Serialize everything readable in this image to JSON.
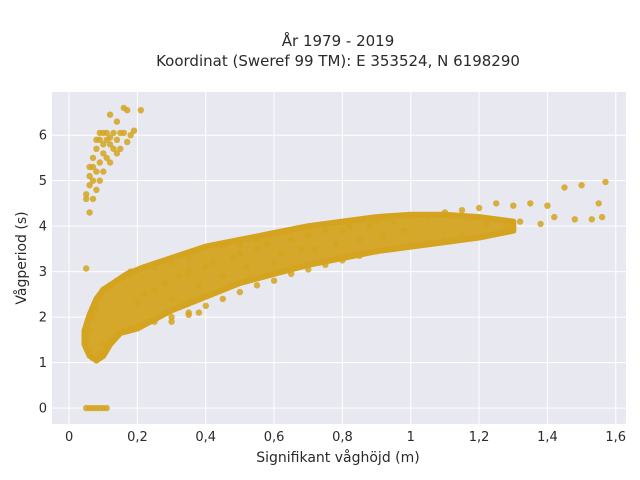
{
  "chart_data": {
    "type": "scatter",
    "title": [
      "År 1979 - 2019",
      "Koordinat (Sweref 99 TM): E 353524, N 6198290"
    ],
    "xlabel": "Signifikant våghöjd (m)",
    "ylabel": "Vågperiod (s)",
    "xlim": [
      -0.05,
      1.63
    ],
    "ylim": [
      -0.35,
      6.95
    ],
    "xticks": [
      0,
      0.2,
      0.4,
      0.6,
      0.8,
      1,
      1.2,
      1.4,
      1.6
    ],
    "xtick_labels": [
      "0",
      "0,2",
      "0,4",
      "0,6",
      "0,8",
      "1",
      "1,2",
      "1,4",
      "1,6"
    ],
    "yticks": [
      0,
      1,
      2,
      3,
      4,
      5,
      6
    ],
    "ytick_labels": [
      "0",
      "1",
      "2",
      "3",
      "4",
      "5",
      "6"
    ],
    "grid": true,
    "colors": {
      "marker": "#d4a420",
      "plot_bg": "#e8e8f0",
      "grid": "#ffffff"
    },
    "series": [
      {
        "points": [
          [
            0.05,
            0
          ],
          [
            0.06,
            0
          ],
          [
            0.07,
            0
          ],
          [
            0.08,
            0
          ],
          [
            0.09,
            0
          ],
          [
            0.1,
            0
          ],
          [
            0.11,
            0
          ],
          [
            0.05,
            3.07
          ],
          [
            0.05,
            4.6
          ],
          [
            0.05,
            4.7
          ],
          [
            0.06,
            4.9
          ],
          [
            0.06,
            5.1
          ],
          [
            0.07,
            5.3
          ],
          [
            0.07,
            5.5
          ],
          [
            0.08,
            5.7
          ],
          [
            0.08,
            5.9
          ],
          [
            0.09,
            5.9
          ],
          [
            0.09,
            6.05
          ],
          [
            0.1,
            6.05
          ],
          [
            0.1,
            5.8
          ],
          [
            0.11,
            5.9
          ],
          [
            0.11,
            6.05
          ],
          [
            0.12,
            5.95
          ],
          [
            0.12,
            5.8
          ],
          [
            0.13,
            6.05
          ],
          [
            0.14,
            5.9
          ],
          [
            0.15,
            6.05
          ],
          [
            0.16,
            6.05
          ],
          [
            0.17,
            5.85
          ],
          [
            0.18,
            6.0
          ],
          [
            0.19,
            6.1
          ],
          [
            0.07,
            5.0
          ],
          [
            0.08,
            4.8
          ],
          [
            0.08,
            5.2
          ],
          [
            0.09,
            5.4
          ],
          [
            0.1,
            5.6
          ],
          [
            0.1,
            5.2
          ],
          [
            0.11,
            5.5
          ],
          [
            0.12,
            5.4
          ],
          [
            0.13,
            5.7
          ],
          [
            0.14,
            5.6
          ],
          [
            0.15,
            5.7
          ],
          [
            0.06,
            4.3
          ],
          [
            0.06,
            5.3
          ],
          [
            0.07,
            4.6
          ],
          [
            0.09,
            5.0
          ],
          [
            0.12,
            6.45
          ],
          [
            0.14,
            6.3
          ],
          [
            0.16,
            6.6
          ],
          [
            0.17,
            6.55
          ],
          [
            0.21,
            6.55
          ],
          [
            0.2,
            2.3
          ],
          [
            0.22,
            2.5
          ],
          [
            0.25,
            2.6
          ],
          [
            0.28,
            2.75
          ],
          [
            0.3,
            2.4
          ],
          [
            0.32,
            2.9
          ],
          [
            0.35,
            3.0
          ],
          [
            0.38,
            2.7
          ],
          [
            0.4,
            3.1
          ],
          [
            0.42,
            3.2
          ],
          [
            0.45,
            2.9
          ],
          [
            0.48,
            3.3
          ],
          [
            0.5,
            3.4
          ],
          [
            0.52,
            3.1
          ],
          [
            0.55,
            3.5
          ],
          [
            0.58,
            3.6
          ],
          [
            0.6,
            3.2
          ],
          [
            0.62,
            3.4
          ],
          [
            0.65,
            3.7
          ],
          [
            0.68,
            3.5
          ],
          [
            0.7,
            3.8
          ],
          [
            0.72,
            3.5
          ],
          [
            0.75,
            3.9
          ],
          [
            0.78,
            3.6
          ],
          [
            0.8,
            3.9
          ],
          [
            0.82,
            4.0
          ],
          [
            0.85,
            3.7
          ],
          [
            0.88,
            4.0
          ],
          [
            0.9,
            4.1
          ],
          [
            0.92,
            3.8
          ],
          [
            0.95,
            4.1
          ],
          [
            0.98,
            3.9
          ],
          [
            1.0,
            4.2
          ],
          [
            1.05,
            4.2
          ],
          [
            1.1,
            4.3
          ],
          [
            1.15,
            4.35
          ],
          [
            1.2,
            4.4
          ],
          [
            1.25,
            4.5
          ],
          [
            1.3,
            4.45
          ],
          [
            1.35,
            4.5
          ],
          [
            1.4,
            4.45
          ],
          [
            1.45,
            4.85
          ],
          [
            1.5,
            4.9
          ],
          [
            1.55,
            4.5
          ],
          [
            1.57,
            4.97
          ],
          [
            1.56,
            4.2
          ],
          [
            1.53,
            4.15
          ],
          [
            1.48,
            4.15
          ],
          [
            1.42,
            4.2
          ],
          [
            1.38,
            4.05
          ],
          [
            1.32,
            4.1
          ],
          [
            1.28,
            4.0
          ],
          [
            1.22,
            4.05
          ],
          [
            0.2,
            1.8
          ],
          [
            0.25,
            1.9
          ],
          [
            0.3,
            2.0
          ],
          [
            0.35,
            2.05
          ],
          [
            0.4,
            2.25
          ],
          [
            0.45,
            2.4
          ],
          [
            0.5,
            2.55
          ],
          [
            0.55,
            2.7
          ],
          [
            0.6,
            2.8
          ],
          [
            0.65,
            2.95
          ],
          [
            0.7,
            3.05
          ],
          [
            0.75,
            3.15
          ],
          [
            0.8,
            3.25
          ],
          [
            0.85,
            3.35
          ],
          [
            0.9,
            3.45
          ],
          [
            0.95,
            3.5
          ],
          [
            1.0,
            3.6
          ],
          [
            1.05,
            3.65
          ],
          [
            1.1,
            3.7
          ],
          [
            1.15,
            3.8
          ],
          [
            0.05,
            1.5
          ],
          [
            0.05,
            1.6
          ],
          [
            0.06,
            1.3
          ],
          [
            0.06,
            1.7
          ],
          [
            0.07,
            1.1
          ],
          [
            0.07,
            2.0
          ],
          [
            0.08,
            1.05
          ],
          [
            0.08,
            2.2
          ],
          [
            0.09,
            1.2
          ],
          [
            0.09,
            2.4
          ],
          [
            0.1,
            1.4
          ],
          [
            0.1,
            2.6
          ],
          [
            0.12,
            1.5
          ],
          [
            0.12,
            2.7
          ],
          [
            0.14,
            1.6
          ],
          [
            0.14,
            2.8
          ],
          [
            0.16,
            1.7
          ],
          [
            0.16,
            2.9
          ],
          [
            0.18,
            1.75
          ],
          [
            0.18,
            3.0
          ],
          [
            0.3,
            1.9
          ],
          [
            0.35,
            2.1
          ],
          [
            0.38,
            2.1
          ],
          [
            0.25,
            3.1
          ],
          [
            0.3,
            3.2
          ],
          [
            0.35,
            3.3
          ],
          [
            0.45,
            3.55
          ],
          [
            0.5,
            3.6
          ],
          [
            0.55,
            3.7
          ]
        ]
      }
    ],
    "dense_band": {
      "upper": [
        [
          0.045,
          1.7
        ],
        [
          0.06,
          2.05
        ],
        [
          0.08,
          2.4
        ],
        [
          0.1,
          2.6
        ],
        [
          0.13,
          2.75
        ],
        [
          0.17,
          2.95
        ],
        [
          0.22,
          3.1
        ],
        [
          0.3,
          3.3
        ],
        [
          0.4,
          3.55
        ],
        [
          0.5,
          3.7
        ],
        [
          0.6,
          3.85
        ],
        [
          0.7,
          4.0
        ],
        [
          0.8,
          4.1
        ],
        [
          0.9,
          4.2
        ],
        [
          1.0,
          4.25
        ],
        [
          1.1,
          4.25
        ],
        [
          1.2,
          4.2
        ],
        [
          1.3,
          4.1
        ]
      ],
      "lower": [
        [
          1.3,
          3.9
        ],
        [
          1.2,
          3.75
        ],
        [
          1.1,
          3.65
        ],
        [
          1.0,
          3.55
        ],
        [
          0.9,
          3.45
        ],
        [
          0.8,
          3.3
        ],
        [
          0.7,
          3.15
        ],
        [
          0.6,
          2.95
        ],
        [
          0.5,
          2.75
        ],
        [
          0.4,
          2.45
        ],
        [
          0.3,
          2.15
        ],
        [
          0.25,
          1.95
        ],
        [
          0.2,
          1.75
        ],
        [
          0.15,
          1.65
        ],
        [
          0.12,
          1.4
        ],
        [
          0.1,
          1.15
        ],
        [
          0.08,
          1.05
        ],
        [
          0.06,
          1.15
        ],
        [
          0.045,
          1.4
        ]
      ]
    }
  }
}
